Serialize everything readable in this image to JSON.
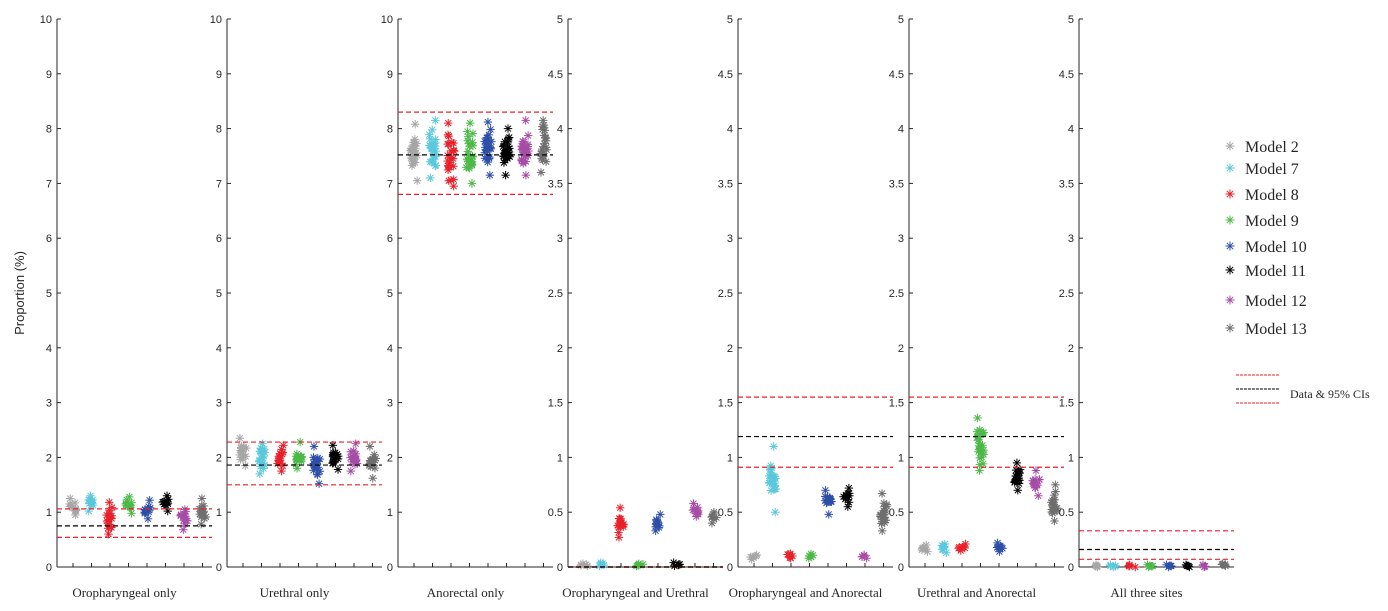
{
  "chart_data": {
    "type": "scatter",
    "ylabel": "Proportion (%)",
    "legend_placement": "right",
    "legend_reference_label": "Data & 95% CIs",
    "series": [
      {
        "name": "Model 2",
        "color": "#a6a6a6"
      },
      {
        "name": "Model 7",
        "color": "#5bc8dc"
      },
      {
        "name": "Model 8",
        "color": "#e8202a"
      },
      {
        "name": "Model 9",
        "color": "#4db848"
      },
      {
        "name": "Model 10",
        "color": "#2d4fa8"
      },
      {
        "name": "Model 11",
        "color": "#000000"
      },
      {
        "name": "Model 12",
        "color": "#a64ca6"
      },
      {
        "name": "Model 13",
        "color": "#6e6e6e"
      }
    ],
    "panels": [
      {
        "title": "Oropharyngeal only",
        "ylim": [
          0,
          10
        ],
        "yticks": [
          "0",
          "1",
          "2",
          "3",
          "4",
          "5",
          "6",
          "7",
          "8",
          "9",
          "10"
        ],
        "data": 0.75,
        "ci": [
          0.54,
          1.06
        ],
        "models": [
          {
            "center": 1.1,
            "min": 0.95,
            "max": 1.25
          },
          {
            "center": 1.15,
            "min": 1.02,
            "max": 1.3
          },
          {
            "center": 0.98,
            "min": 0.6,
            "max": 1.18
          },
          {
            "center": 1.12,
            "min": 0.98,
            "max": 1.28
          },
          {
            "center": 1.08,
            "min": 0.88,
            "max": 1.22
          },
          {
            "center": 1.17,
            "min": 1.02,
            "max": 1.3
          },
          {
            "center": 0.85,
            "min": 0.68,
            "max": 1.05
          },
          {
            "center": 0.98,
            "min": 0.78,
            "max": 1.25
          }
        ]
      },
      {
        "title": "Urethral only",
        "ylim": [
          0,
          10
        ],
        "yticks": [
          "0",
          "1",
          "2",
          "3",
          "4",
          "5",
          "6",
          "7",
          "8",
          "9",
          "10"
        ],
        "data": 1.86,
        "ci": [
          1.5,
          2.28
        ],
        "models": [
          {
            "center": 2.05,
            "min": 1.85,
            "max": 2.35
          },
          {
            "center": 1.95,
            "min": 1.7,
            "max": 2.25
          },
          {
            "center": 1.98,
            "min": 1.75,
            "max": 2.22
          },
          {
            "center": 2.02,
            "min": 1.8,
            "max": 2.28
          },
          {
            "center": 1.88,
            "min": 1.52,
            "max": 2.2
          },
          {
            "center": 1.98,
            "min": 1.78,
            "max": 2.22
          },
          {
            "center": 1.98,
            "min": 1.75,
            "max": 2.25
          },
          {
            "center": 1.92,
            "min": 1.62,
            "max": 2.2
          }
        ]
      },
      {
        "title": "Anorectal only",
        "ylim": [
          0,
          10
        ],
        "yticks": [
          "0",
          "1",
          "2",
          "3",
          "4",
          "5",
          "6",
          "7",
          "8",
          "9",
          "10"
        ],
        "data": 7.52,
        "ci": [
          6.8,
          8.3
        ],
        "models": [
          {
            "center": 7.55,
            "min": 7.05,
            "max": 8.08
          },
          {
            "center": 7.6,
            "min": 7.1,
            "max": 8.15
          },
          {
            "center": 7.5,
            "min": 6.95,
            "max": 8.1
          },
          {
            "center": 7.55,
            "min": 7.0,
            "max": 8.1
          },
          {
            "center": 7.6,
            "min": 7.15,
            "max": 8.12
          },
          {
            "center": 7.55,
            "min": 7.15,
            "max": 8.0
          },
          {
            "center": 7.62,
            "min": 7.15,
            "max": 8.15
          },
          {
            "center": 7.62,
            "min": 7.2,
            "max": 8.15
          }
        ]
      },
      {
        "title": "Oropharyngeal and Urethral",
        "ylim": [
          0,
          5
        ],
        "yticks": [
          "0",
          "0.5",
          "1",
          "1.5",
          "2",
          "2.5",
          "3",
          "3.5",
          "4",
          "4.5",
          "5"
        ],
        "data": 0.0,
        "ci": [
          0.0,
          0.0
        ],
        "models": [
          {
            "center": 0.02,
            "min": 0.01,
            "max": 0.03
          },
          {
            "center": 0.02,
            "min": 0.01,
            "max": 0.04
          },
          {
            "center": 0.47,
            "min": 0.27,
            "max": 0.54
          },
          {
            "center": 0.02,
            "min": 0.01,
            "max": 0.03
          },
          {
            "center": 0.4,
            "min": 0.33,
            "max": 0.48
          },
          {
            "center": 0.02,
            "min": 0.01,
            "max": 0.04
          },
          {
            "center": 0.52,
            "min": 0.46,
            "max": 0.58
          },
          {
            "center": 0.45,
            "min": 0.4,
            "max": 0.5
          }
        ]
      },
      {
        "title": "Oropharyngeal and Anorectal",
        "ylim": [
          0,
          5
        ],
        "yticks": [
          "0",
          "0.5",
          "1",
          "1.5",
          "2",
          "2.5",
          "3",
          "3.5",
          "4",
          "4.5",
          "5"
        ],
        "data": 1.19,
        "ci": [
          0.91,
          1.55
        ],
        "models": [
          {
            "center": 0.09,
            "min": 0.07,
            "max": 0.11
          },
          {
            "center": 0.8,
            "min": 0.5,
            "max": 1.1
          },
          {
            "center": 0.1,
            "min": 0.08,
            "max": 0.12
          },
          {
            "center": 0.1,
            "min": 0.08,
            "max": 0.12
          },
          {
            "center": 0.58,
            "min": 0.48,
            "max": 0.7
          },
          {
            "center": 0.63,
            "min": 0.55,
            "max": 0.72
          },
          {
            "center": 0.09,
            "min": 0.08,
            "max": 0.11
          },
          {
            "center": 0.46,
            "min": 0.33,
            "max": 0.67
          }
        ]
      },
      {
        "title": "Urethral and Anorectal",
        "ylim": [
          0,
          5
        ],
        "yticks": [
          "0",
          "0.5",
          "1",
          "1.5",
          "2",
          "2.5",
          "3",
          "3.5",
          "4",
          "4.5",
          "5"
        ],
        "data": 1.19,
        "ci": [
          0.91,
          1.55
        ],
        "models": [
          {
            "center": 0.17,
            "min": 0.14,
            "max": 0.2
          },
          {
            "center": 0.17,
            "min": 0.13,
            "max": 0.21
          },
          {
            "center": 0.18,
            "min": 0.15,
            "max": 0.21
          },
          {
            "center": 1.05,
            "min": 0.88,
            "max": 1.36
          },
          {
            "center": 0.18,
            "min": 0.14,
            "max": 0.22
          },
          {
            "center": 0.82,
            "min": 0.7,
            "max": 0.95
          },
          {
            "center": 0.75,
            "min": 0.65,
            "max": 0.88
          },
          {
            "center": 0.58,
            "min": 0.42,
            "max": 0.75
          }
        ]
      },
      {
        "title": "All three sites",
        "ylim": [
          0,
          5
        ],
        "yticks": [
          "0",
          "0.5",
          "1",
          "1.5",
          "2",
          "2.5",
          "3",
          "3.5",
          "4",
          "4.5",
          "5"
        ],
        "data": 0.16,
        "ci": [
          0.07,
          0.33
        ],
        "models": [
          {
            "center": 0.01,
            "min": 0.0,
            "max": 0.02
          },
          {
            "center": 0.01,
            "min": 0.0,
            "max": 0.02
          },
          {
            "center": 0.01,
            "min": 0.0,
            "max": 0.02
          },
          {
            "center": 0.01,
            "min": 0.0,
            "max": 0.02
          },
          {
            "center": 0.01,
            "min": 0.0,
            "max": 0.02
          },
          {
            "center": 0.01,
            "min": 0.0,
            "max": 0.02
          },
          {
            "center": 0.01,
            "min": 0.0,
            "max": 0.02
          },
          {
            "center": 0.02,
            "min": 0.01,
            "max": 0.03
          }
        ]
      }
    ]
  }
}
